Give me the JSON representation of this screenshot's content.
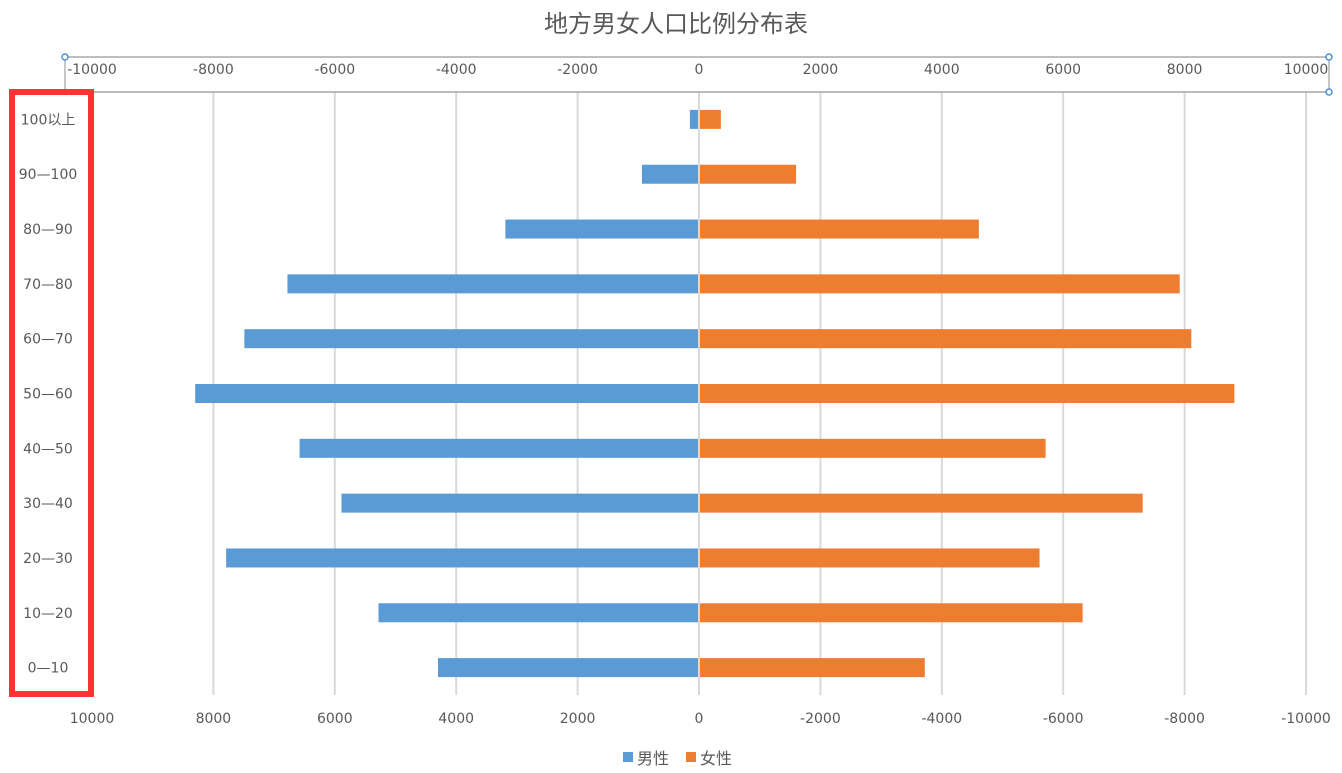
{
  "chart_data": {
    "type": "bar",
    "orientation": "horizontal",
    "title": "地方男女人口比例分布表",
    "categories": [
      "100以上",
      "90—100",
      "80—90",
      "70—80",
      "60—70",
      "50—60",
      "40—50",
      "30—40",
      "20—30",
      "10—20",
      "0—10"
    ],
    "series": [
      {
        "name": "男性",
        "color": "#5b9bd5",
        "values": [
          -150,
          -940,
          -3190,
          -6780,
          -7490,
          -8300,
          -6580,
          -5890,
          -7790,
          -5280,
          -4300
        ]
      },
      {
        "name": "女性",
        "color": "#ed7d31",
        "values": [
          360,
          1600,
          4610,
          7920,
          8110,
          8820,
          5710,
          7310,
          5610,
          6320,
          3720
        ]
      }
    ],
    "top_axis_ticks": [
      "-10000",
      "-8000",
      "-6000",
      "-4000",
      "-2000",
      "0",
      "2000",
      "4000",
      "6000",
      "8000",
      "10000"
    ],
    "bottom_axis_ticks": [
      "10000",
      "8000",
      "6000",
      "4000",
      "2000",
      "0",
      "-2000",
      "-4000",
      "-6000",
      "-8000",
      "-10000"
    ],
    "xlim": [
      -10000,
      10000
    ],
    "grid": true,
    "legend": "bottom",
    "highlight": "category-axis"
  }
}
